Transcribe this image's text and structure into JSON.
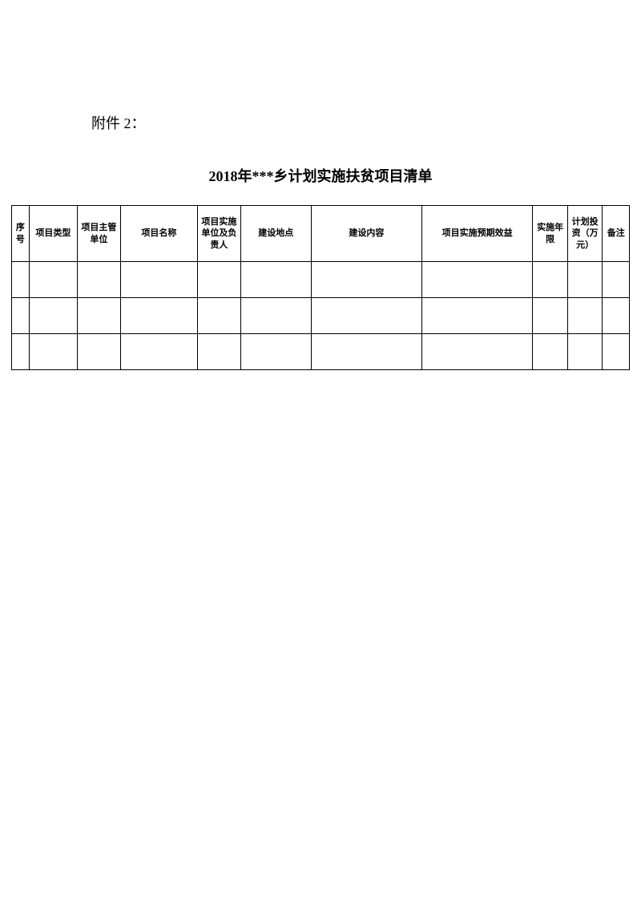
{
  "attachment_label": "附件 2：",
  "table": {
    "type": "table",
    "title": "2018年***乡计划实施扶贫项目清单",
    "columns": [
      {
        "label": "序号",
        "width": "2.6%"
      },
      {
        "label": "项目类型",
        "width": "7.2%"
      },
      {
        "label": "项目主管单位",
        "width": "6.4%"
      },
      {
        "label": "项目名称",
        "width": "11.5%"
      },
      {
        "label": "项目实施单位及负责人",
        "width": "6.4%"
      },
      {
        "label": "建设地点",
        "width": "10.5%"
      },
      {
        "label": "建设内容",
        "width": "16.5%"
      },
      {
        "label": "项目实施预期效益",
        "width": "16.5%"
      },
      {
        "label": "实施年限",
        "width": "5.2%"
      },
      {
        "label": "计划投资（万元）",
        "width": "5.2%"
      },
      {
        "label": "备注",
        "width": "4.0%"
      }
    ],
    "rows": [
      [
        "",
        "",
        "",
        "",
        "",
        "",
        "",
        "",
        "",
        "",
        ""
      ],
      [
        "",
        "",
        "",
        "",
        "",
        "",
        "",
        "",
        "",
        "",
        ""
      ],
      [
        "",
        "",
        "",
        "",
        "",
        "",
        "",
        "",
        "",
        "",
        ""
      ]
    ],
    "border_color": "#000000",
    "background_color": "#ffffff",
    "header_fontsize": 11,
    "cell_fontsize": 11,
    "title_fontsize": 18,
    "header_row_height": 70,
    "data_row_height": 45
  }
}
